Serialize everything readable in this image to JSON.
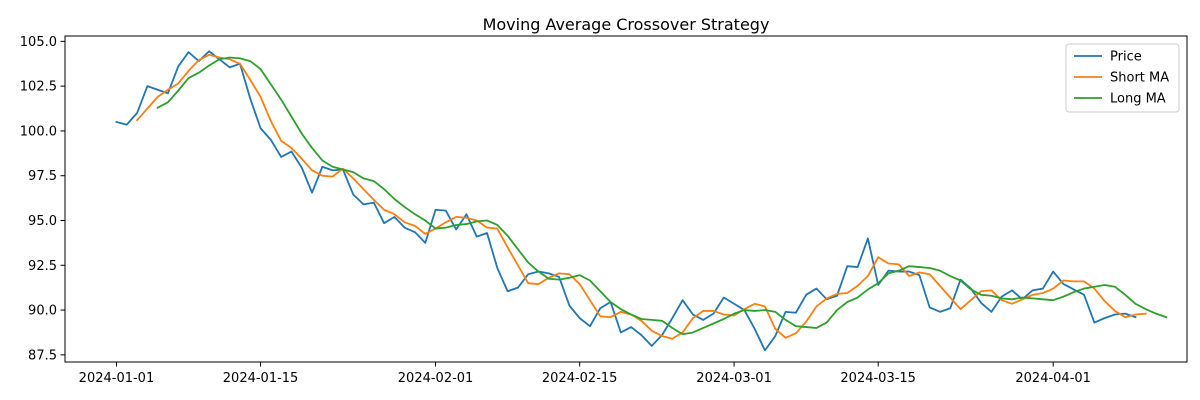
{
  "chart_data": {
    "type": "line",
    "title": "Moving Average Crossover Strategy",
    "xlabel": "",
    "ylabel": "",
    "x_start": "2024-01-01",
    "x_end": "2024-04-09",
    "xlim": [
      "2023-12-27",
      "2024-04-14"
    ],
    "ylim": [
      87.1,
      105.3
    ],
    "x_ticks": [
      "2024-01-01",
      "2024-01-15",
      "2024-02-01",
      "2024-02-15",
      "2024-03-01",
      "2024-03-15",
      "2024-04-01"
    ],
    "y_ticks": [
      87.5,
      90.0,
      92.5,
      95.0,
      97.5,
      100.0,
      102.5,
      105.0
    ],
    "grid": false,
    "legend_position": "upper-right",
    "series": [
      {
        "name": "Price",
        "color": "#1f77b4",
        "start_date": "2024-01-01",
        "values": [
          100.5,
          100.35,
          101.0,
          102.5,
          102.3,
          102.1,
          103.6,
          104.4,
          103.9,
          104.45,
          104.0,
          103.55,
          103.75,
          101.8,
          100.15,
          99.5,
          98.55,
          98.85,
          97.95,
          96.55,
          98.0,
          97.8,
          97.85,
          96.45,
          95.9,
          96.0,
          94.85,
          95.2,
          94.6,
          94.35,
          93.75,
          95.6,
          95.55,
          94.5,
          95.35,
          94.1,
          94.3,
          92.35,
          91.05,
          91.25,
          92.0,
          92.15,
          92.05,
          91.85,
          90.25,
          89.55,
          89.1,
          90.1,
          90.45,
          88.75,
          89.05,
          88.6,
          88.0,
          88.6,
          89.55,
          90.55,
          89.75,
          89.45,
          89.8,
          90.7,
          90.35,
          90.0,
          88.95,
          87.75,
          88.55,
          89.9,
          89.85,
          90.85,
          91.2,
          90.6,
          90.8,
          92.45,
          92.4,
          94.0,
          91.4,
          92.2,
          92.15,
          92.15,
          91.95,
          90.15,
          89.9,
          90.1,
          91.7,
          91.2,
          90.4,
          89.9,
          90.75,
          91.1,
          90.6,
          91.1,
          91.2,
          92.15,
          91.45,
          91.15,
          90.85,
          89.3,
          89.55,
          89.75,
          89.8,
          89.6
        ]
      },
      {
        "name": "Short MA",
        "color": "#ff7f0e",
        "start_date": "2024-01-03",
        "values": [
          100.6,
          101.25,
          101.9,
          102.3,
          102.65,
          103.35,
          103.95,
          104.25,
          104.1,
          104.0,
          103.75,
          102.85,
          101.9,
          100.55,
          99.45,
          99.05,
          98.45,
          97.8,
          97.5,
          97.45,
          97.9,
          97.35,
          96.75,
          96.15,
          95.6,
          95.35,
          94.9,
          94.7,
          94.25,
          94.55,
          94.9,
          95.2,
          95.15,
          95.0,
          94.6,
          94.55,
          93.5,
          92.5,
          91.5,
          91.45,
          91.8,
          92.05,
          92.0,
          91.45,
          90.55,
          89.65,
          89.6,
          89.9,
          89.75,
          89.4,
          88.85,
          88.55,
          88.4,
          88.75,
          89.55,
          89.95,
          89.95,
          89.75,
          89.7,
          90.05,
          90.35,
          90.2,
          88.95,
          88.45,
          88.7,
          89.35,
          90.2,
          90.65,
          90.9,
          90.95,
          91.35,
          91.9,
          92.95,
          92.6,
          92.55,
          91.9,
          92.1,
          92.0,
          91.35,
          90.7,
          90.05,
          90.55,
          91.05,
          91.1,
          90.55,
          90.35,
          90.6,
          90.85,
          90.95,
          91.2,
          91.65,
          91.6,
          91.6,
          91.2,
          90.5,
          89.95,
          89.6,
          89.75,
          89.8
        ]
      },
      {
        "name": "Long MA",
        "color": "#2ca02c",
        "start_date": "2024-01-05",
        "values": [
          101.3,
          101.6,
          102.25,
          102.95,
          103.25,
          103.65,
          104.0,
          104.1,
          104.05,
          103.9,
          103.45,
          102.6,
          101.75,
          100.8,
          99.85,
          99.05,
          98.35,
          98.0,
          97.85,
          97.7,
          97.35,
          97.2,
          96.75,
          96.2,
          95.75,
          95.35,
          95.0,
          94.55,
          94.6,
          94.75,
          94.8,
          94.95,
          95.0,
          94.75,
          94.15,
          93.4,
          92.65,
          92.15,
          91.75,
          91.7,
          91.8,
          91.95,
          91.65,
          91.05,
          90.45,
          90.05,
          89.75,
          89.5,
          89.45,
          89.4,
          89.0,
          88.65,
          88.75,
          89.0,
          89.25,
          89.5,
          89.8,
          90.0,
          89.95,
          90.0,
          89.9,
          89.45,
          89.1,
          89.05,
          89.0,
          89.3,
          90.0,
          90.45,
          90.7,
          91.15,
          91.5,
          92.05,
          92.2,
          92.45,
          92.4,
          92.35,
          92.2,
          91.9,
          91.65,
          91.15,
          90.85,
          90.8,
          90.65,
          90.6,
          90.7,
          90.65,
          90.6,
          90.55,
          90.75,
          91.0,
          91.2,
          91.3,
          91.4,
          91.3,
          90.85,
          90.35,
          90.05,
          89.8,
          89.6
        ]
      }
    ]
  }
}
